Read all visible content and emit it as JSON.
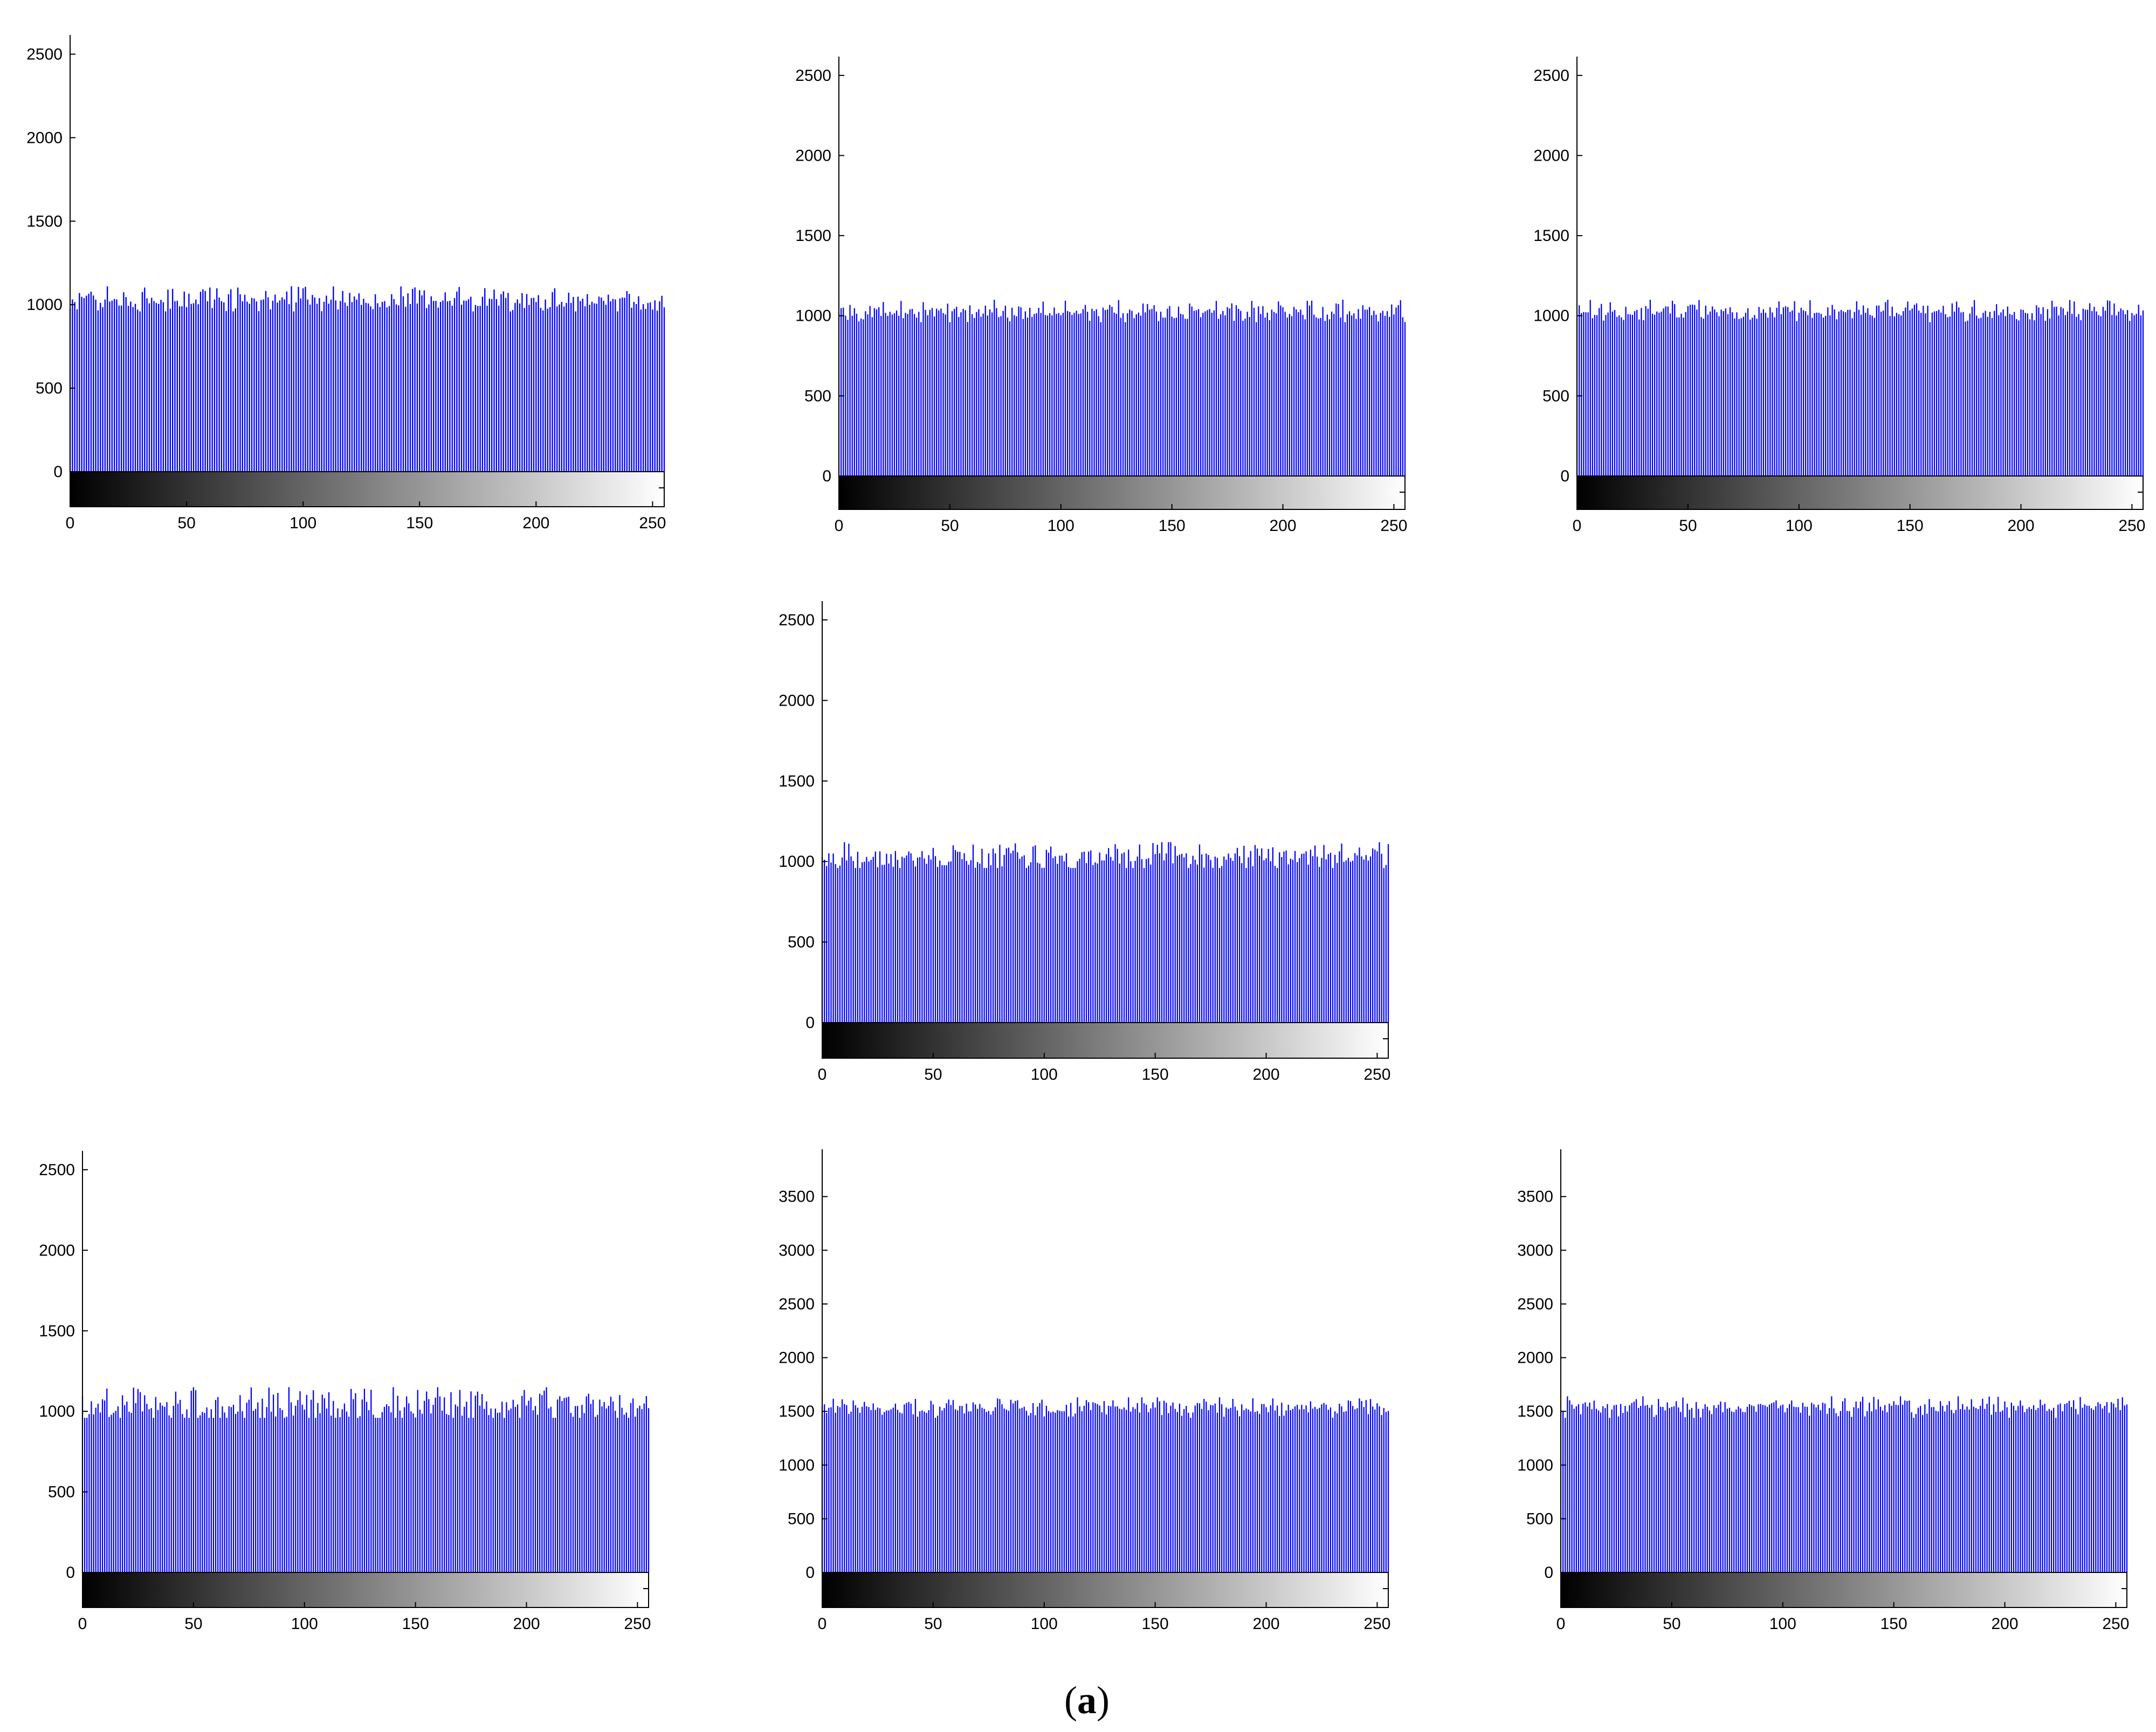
{
  "figure": {
    "caption_open": "(",
    "caption_letter": "a",
    "caption_close": ")"
  },
  "style": {
    "bar_color": "#0000ff",
    "background": "#ffffff",
    "axis_color": "#000000",
    "colorbar": "grayscale gradient (black at 0 to white at 255)"
  },
  "chart_data": [
    {
      "type": "bar",
      "panel": "row 1, left",
      "x_range": [
        0,
        255
      ],
      "xticks": [
        0,
        50,
        100,
        150,
        200,
        250
      ],
      "ylim": [
        0,
        2550
      ],
      "yticks": [
        0,
        500,
        1000,
        1500,
        2000,
        2500
      ],
      "bins": 256,
      "mean_count": 1024,
      "peak_count": 1110,
      "min_count": 960,
      "colorbar": true,
      "grid": false
    },
    {
      "type": "bar",
      "panel": "row 1, middle",
      "x_range": [
        0,
        255
      ],
      "xticks": [
        0,
        50,
        100,
        150,
        200,
        250
      ],
      "ylim": [
        0,
        2550
      ],
      "yticks": [
        0,
        500,
        1000,
        1500,
        2000,
        2500
      ],
      "bins": 256,
      "mean_count": 1024,
      "peak_count": 1100,
      "min_count": 960,
      "colorbar": true,
      "grid": false
    },
    {
      "type": "bar",
      "panel": "row 1, right",
      "x_range": [
        0,
        255
      ],
      "xticks": [
        0,
        50,
        100,
        150,
        200,
        250
      ],
      "ylim": [
        0,
        2550
      ],
      "yticks": [
        0,
        500,
        1000,
        1500,
        2000,
        2500
      ],
      "bins": 256,
      "mean_count": 1024,
      "peak_count": 1100,
      "min_count": 960,
      "colorbar": true,
      "grid": false
    },
    {
      "type": "bar",
      "panel": "row 2, center",
      "x_range": [
        0,
        255
      ],
      "xticks": [
        0,
        50,
        100,
        150,
        200,
        250
      ],
      "ylim": [
        0,
        2550
      ],
      "yticks": [
        0,
        500,
        1000,
        1500,
        2000,
        2500
      ],
      "bins": 256,
      "mean_count": 1024,
      "peak_count": 1120,
      "min_count": 960,
      "colorbar": true,
      "grid": false
    },
    {
      "type": "bar",
      "panel": "row 3, left",
      "x_range": [
        0,
        255
      ],
      "xticks": [
        0,
        50,
        100,
        150,
        200,
        250
      ],
      "ylim": [
        0,
        2550
      ],
      "yticks": [
        0,
        500,
        1000,
        1500,
        2000,
        2500
      ],
      "bins": 256,
      "mean_count": 1024,
      "peak_count": 1150,
      "min_count": 960,
      "colorbar": true,
      "grid": false
    },
    {
      "type": "bar",
      "panel": "row 3, middle",
      "x_range": [
        0,
        255
      ],
      "xticks": [
        0,
        50,
        100,
        150,
        200,
        250
      ],
      "ylim": [
        0,
        3840
      ],
      "yticks": [
        0,
        500,
        1000,
        1500,
        2000,
        2500,
        3000,
        3500
      ],
      "bins": 256,
      "mean_count": 1536,
      "peak_count": 1630,
      "min_count": 1440,
      "colorbar": true,
      "grid": false
    },
    {
      "type": "bar",
      "panel": "row 3, right",
      "x_range": [
        0,
        255
      ],
      "xticks": [
        0,
        50,
        100,
        150,
        200,
        250
      ],
      "ylim": [
        0,
        3840
      ],
      "yticks": [
        0,
        500,
        1000,
        1500,
        2000,
        2500,
        3000,
        3500
      ],
      "bins": 256,
      "mean_count": 1536,
      "peak_count": 1640,
      "min_count": 1440,
      "colorbar": true,
      "grid": false
    }
  ]
}
